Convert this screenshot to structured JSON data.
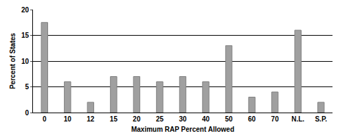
{
  "chart_data": {
    "type": "bar",
    "x_label": "Maximum RAP Percent Allowed",
    "y_label": "Percent of States",
    "categories": [
      "0",
      "10",
      "12",
      "15",
      "20",
      "25",
      "30",
      "40",
      "50",
      "60",
      "70",
      "N.L.",
      "S.P."
    ],
    "values": [
      17.5,
      6,
      2,
      7,
      7,
      6,
      7,
      6,
      13,
      3,
      4,
      16,
      2
    ],
    "color": "#a0a0a0",
    "ylim": [
      0,
      20
    ],
    "yticks": [
      0,
      5,
      10,
      15,
      20
    ],
    "grid": true
  }
}
